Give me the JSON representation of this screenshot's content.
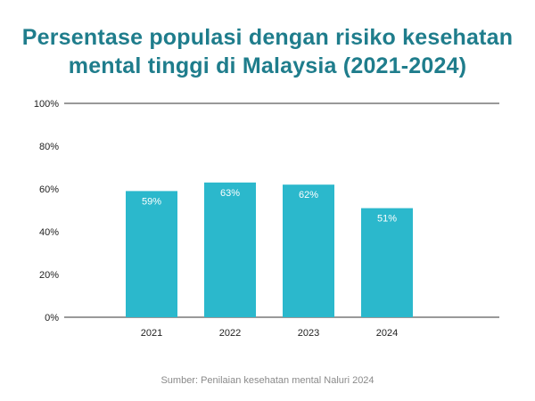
{
  "chart_data": {
    "type": "bar",
    "title": "Persentase populasi dengan risiko kesehatan\nmental tinggi di Malaysia (2021-2024)",
    "categories": [
      "2021",
      "2022",
      "2023",
      "2024"
    ],
    "values": [
      59,
      63,
      62,
      51
    ],
    "data_labels": [
      "59%",
      "63%",
      "62%",
      "51%"
    ],
    "ylim": [
      0,
      100
    ],
    "yticks": [
      0,
      20,
      40,
      60,
      80,
      100
    ],
    "ytick_labels": [
      "0%",
      "20%",
      "40%",
      "60%",
      "80%",
      "100%"
    ],
    "xlabel": "",
    "ylabel": "",
    "grid": "top and bottom lines only",
    "bar_color": "#2bb8cc",
    "title_color": "#1f7d8c"
  },
  "source": "Sumber: Penilaian kesehatan mental Naluri 2024"
}
